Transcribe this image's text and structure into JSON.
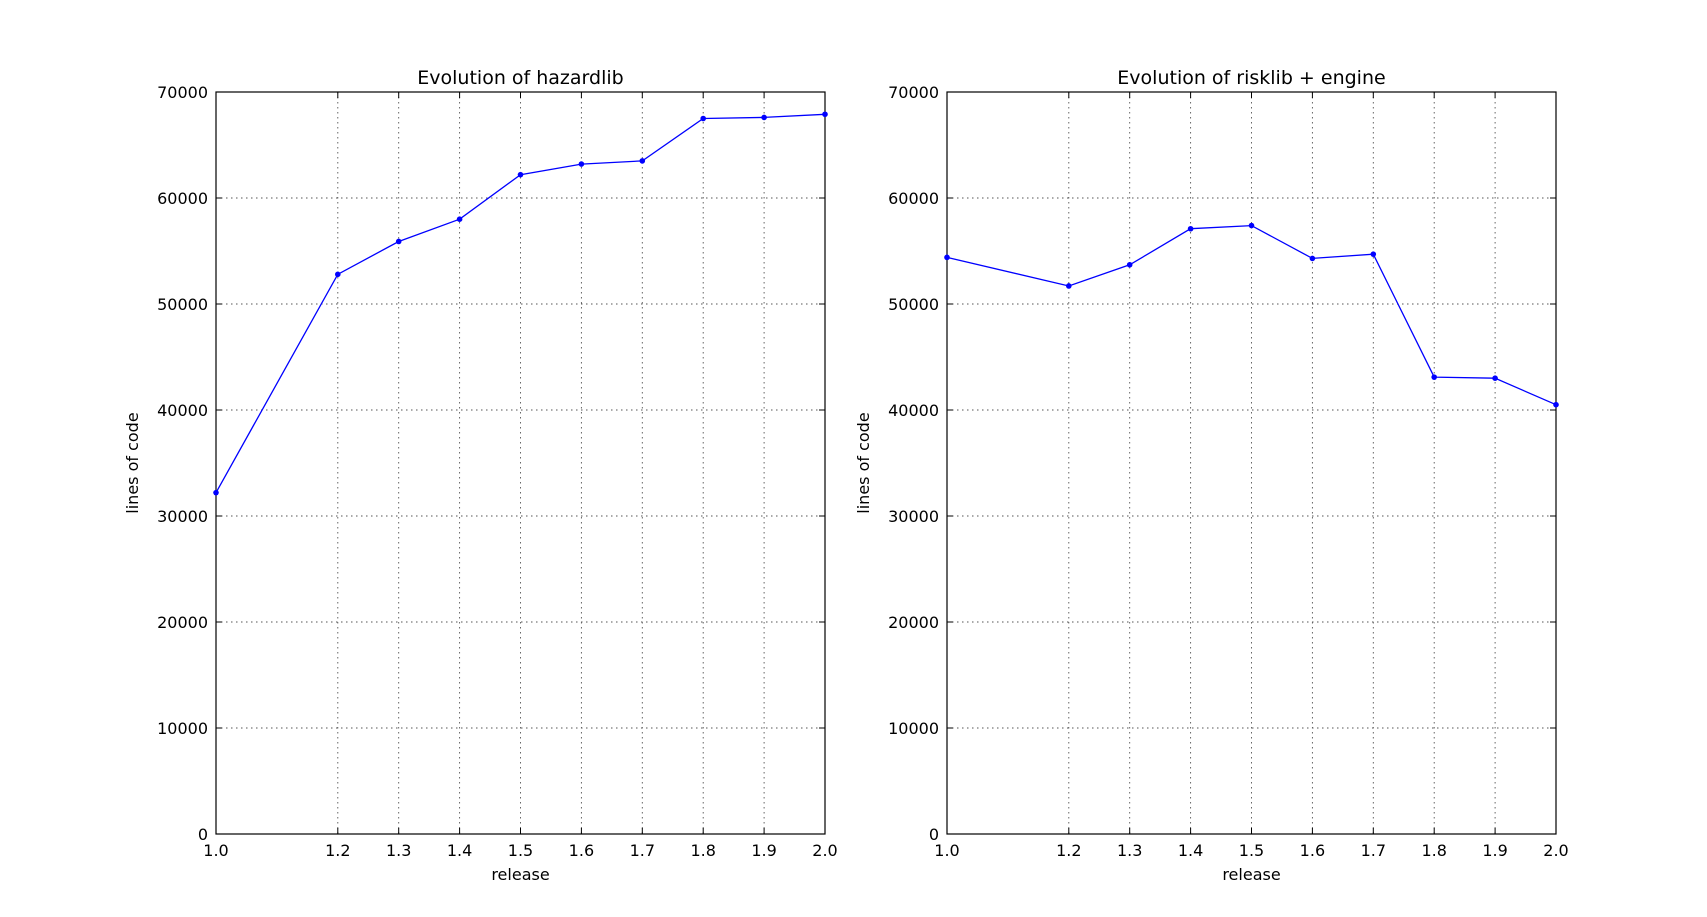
{
  "chart_data": [
    {
      "type": "line",
      "title": "Evolution of hazardlib",
      "xlabel": "release",
      "ylabel": "lines of code",
      "xlim": [
        1.0,
        2.0
      ],
      "ylim": [
        0,
        70000
      ],
      "x_ticks": [
        1.0,
        1.2,
        1.3,
        1.4,
        1.5,
        1.6,
        1.7,
        1.8,
        1.9,
        2.0
      ],
      "x_tick_labels": [
        "1.0",
        "1.2",
        "1.3",
        "1.4",
        "1.5",
        "1.6",
        "1.7",
        "1.8",
        "1.9",
        "2.0"
      ],
      "y_ticks": [
        0,
        10000,
        20000,
        30000,
        40000,
        50000,
        60000,
        70000
      ],
      "y_tick_labels": [
        "0",
        "10000",
        "20000",
        "30000",
        "40000",
        "50000",
        "60000",
        "70000"
      ],
      "grid": true,
      "series": [
        {
          "color": "#0000ff",
          "marker": "point",
          "x": [
            1.0,
            1.2,
            1.3,
            1.4,
            1.5,
            1.6,
            1.7,
            1.8,
            1.9,
            2.0
          ],
          "y": [
            32200,
            52800,
            55900,
            58000,
            62200,
            63200,
            63500,
            67500,
            67600,
            67900
          ]
        }
      ]
    },
    {
      "type": "line",
      "title": "Evolution of risklib + engine",
      "xlabel": "release",
      "ylabel": "lines of code",
      "xlim": [
        1.0,
        2.0
      ],
      "ylim": [
        0,
        70000
      ],
      "x_ticks": [
        1.0,
        1.2,
        1.3,
        1.4,
        1.5,
        1.6,
        1.7,
        1.8,
        1.9,
        2.0
      ],
      "x_tick_labels": [
        "1.0",
        "1.2",
        "1.3",
        "1.4",
        "1.5",
        "1.6",
        "1.7",
        "1.8",
        "1.9",
        "2.0"
      ],
      "y_ticks": [
        0,
        10000,
        20000,
        30000,
        40000,
        50000,
        60000,
        70000
      ],
      "y_tick_labels": [
        "0",
        "10000",
        "20000",
        "30000",
        "40000",
        "50000",
        "60000",
        "70000"
      ],
      "grid": true,
      "series": [
        {
          "color": "#0000ff",
          "marker": "point",
          "x": [
            1.0,
            1.2,
            1.3,
            1.4,
            1.5,
            1.6,
            1.7,
            1.8,
            1.9,
            2.0
          ],
          "y": [
            54400,
            51700,
            53700,
            57100,
            57400,
            54300,
            54700,
            43100,
            43000,
            40500
          ]
        }
      ]
    }
  ]
}
